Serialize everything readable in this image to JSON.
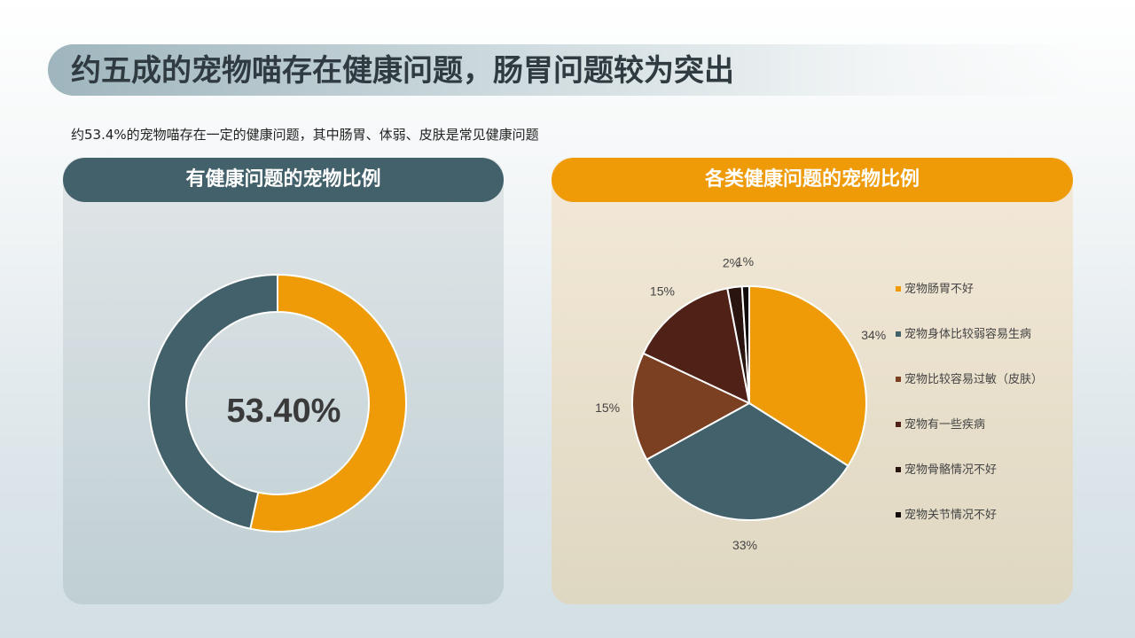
{
  "title": "约五成的宠物喵存在健康问题，肠胃问题较为突出",
  "subtitle": "约53.4%的宠物喵存在一定的健康问题，其中肠胃、体弱、皮肤是常见健康问题",
  "colors": {
    "orange": "#ef9a07",
    "teal": "#42616b",
    "brown": "#7b3f22",
    "dark_brown": "#4f2117",
    "near_black": "#2a1410"
  },
  "chart_data": [
    {
      "type": "pie",
      "variant": "donut",
      "title": "有健康问题的宠物比例",
      "center_label": "53.40%",
      "slices": [
        {
          "value": 53.4,
          "color": "#ef9a07"
        },
        {
          "value": 46.6,
          "color": "#42616b"
        }
      ]
    },
    {
      "type": "pie",
      "title": "各类健康问题的宠物比例",
      "legend_position": "right",
      "slices": [
        {
          "label": "宠物肠胃不好",
          "value": 34,
          "display": "34%",
          "color": "#ef9a07"
        },
        {
          "label": "宠物身体比较弱容易生病",
          "value": 33,
          "display": "33%",
          "color": "#42616b"
        },
        {
          "label": "宠物比较容易过敏（皮肤）",
          "value": 15,
          "display": "15%",
          "color": "#7b3f22"
        },
        {
          "label": "宠物有一些疾病",
          "value": 15,
          "display": "15%",
          "color": "#4f2117"
        },
        {
          "label": "宠物骨骼情况不好",
          "value": 2,
          "display": "2%",
          "color": "#2a1410"
        },
        {
          "label": "宠物关节情况不好",
          "value": 1,
          "display": "1%",
          "color": "#120a08"
        }
      ]
    }
  ]
}
